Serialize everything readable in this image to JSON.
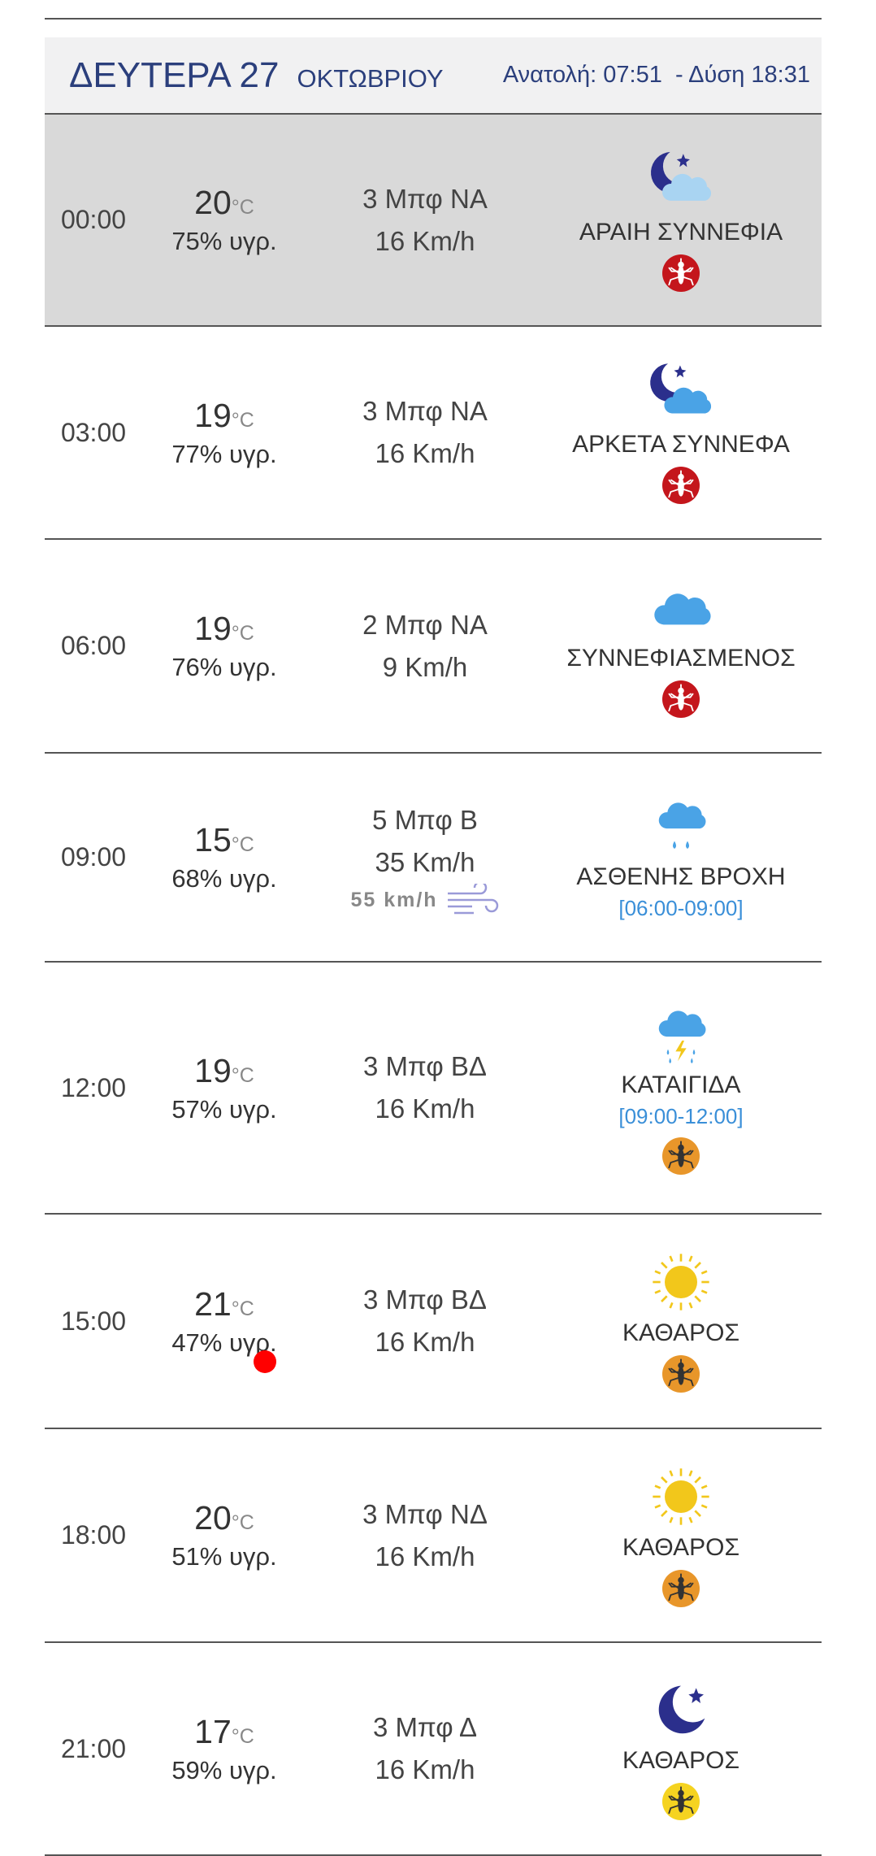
{
  "header": {
    "day": "ΔΕΥΤΕΡΑ 27",
    "month": "ΟΚΤΩΒΡΙΟΥ",
    "sunrise": "Ανατολή: 07:51",
    "sunset": "- Δύση 18:31"
  },
  "temp_unit": "°C",
  "rows": [
    {
      "time": "00:00",
      "temp": "20",
      "humidity": "75% υγρ.",
      "wind": "3 Μπφ ΝΑ",
      "speed": "16 Km/h",
      "condition": "ΑΡΑΙΗ ΣΥΝΝΕΦΙΑ"
    },
    {
      "time": "03:00",
      "temp": "19",
      "humidity": "77% υγρ.",
      "wind": "3 Μπφ ΝΑ",
      "speed": "16 Km/h",
      "condition": "ΑΡΚΕΤΑ ΣΥΝΝΕΦΑ"
    },
    {
      "time": "06:00",
      "temp": "19",
      "humidity": "76% υγρ.",
      "wind": "2 Μπφ ΝΑ",
      "speed": "9 Km/h",
      "condition": "ΣΥΝΝΕΦΙΑΣΜΕΝΟΣ"
    },
    {
      "time": "09:00",
      "temp": "15",
      "humidity": "68% υγρ.",
      "wind": "5 Μπφ Β",
      "speed": "35 Km/h",
      "gust": "55 km/h",
      "condition": "ΑΣΘΕΝΗΣ ΒΡΟΧΗ",
      "period": "[06:00-09:00]"
    },
    {
      "time": "12:00",
      "temp": "19",
      "humidity": "57% υγρ.",
      "wind": "3 Μπφ ΒΔ",
      "speed": "16 Km/h",
      "condition": "ΚΑΤΑΙΓΙΔΑ",
      "period": "[09:00-12:00]"
    },
    {
      "time": "15:00",
      "temp": "21",
      "humidity": "47% υγρ.",
      "wind": "3 Μπφ ΒΔ",
      "speed": "16 Km/h",
      "condition": "ΚΑΘΑΡΟΣ"
    },
    {
      "time": "18:00",
      "temp": "20",
      "humidity": "51% υγρ.",
      "wind": "3 Μπφ ΝΔ",
      "speed": "16 Km/h",
      "condition": "ΚΑΘΑΡΟΣ"
    },
    {
      "time": "21:00",
      "temp": "17",
      "humidity": "59% υγρ.",
      "wind": "3 Μπφ Δ",
      "speed": "16 Km/h",
      "condition": "ΚΑΘΑΡΟΣ"
    }
  ]
}
